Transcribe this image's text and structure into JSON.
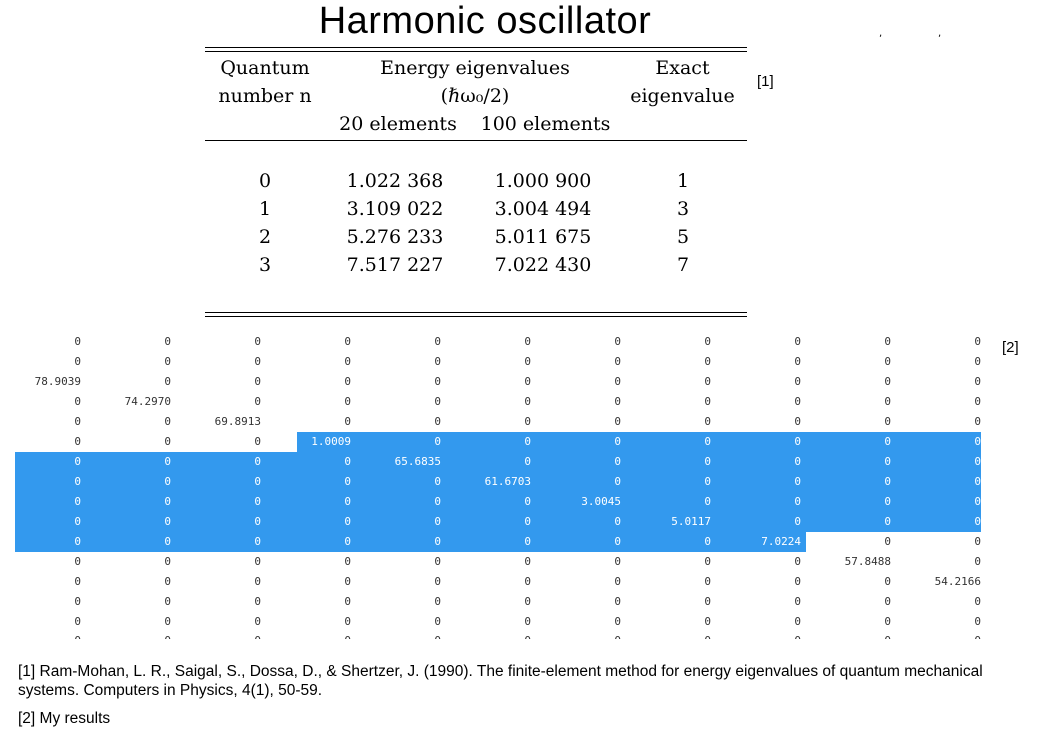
{
  "title": "Harmonic oscillator",
  "table": {
    "headers": {
      "col1": [
        "Quantum",
        "number n"
      ],
      "col2_top": [
        "Energy eigenvalues",
        "(ℏω₀/2)"
      ],
      "col2_sub": [
        "20 elements",
        "100 elements"
      ],
      "col3": [
        "Exact",
        "eigenvalue"
      ]
    },
    "rows": [
      [
        "0",
        "1.022 368",
        "1.000 900",
        "1"
      ],
      [
        "1",
        "3.109 022",
        "3.004 494",
        "3"
      ],
      [
        "2",
        "5.276 233",
        "5.011 675",
        "5"
      ],
      [
        "3",
        "7.517 227",
        "7.022 430",
        "7"
      ]
    ],
    "ref_mark": "[1]"
  },
  "matrix": {
    "ref_mark": "[2]",
    "diagonal_values": [
      "78.9039",
      "74.2970",
      "69.8913",
      "1.0009",
      "65.6835",
      "61.6703",
      "3.0045",
      "5.0117",
      "7.0224",
      "57.8488",
      "54.2166"
    ],
    "zero": "0"
  },
  "footnotes": [
    "[1] Ram-Mohan, L. R., Saigal, S., Dossa, D., & Shertzer, J. (1990). The finite-element method for energy eigenvalues of quantum mechanical systems. Computers in Physics, 4(1), 50-59.",
    "[2] My results"
  ]
}
